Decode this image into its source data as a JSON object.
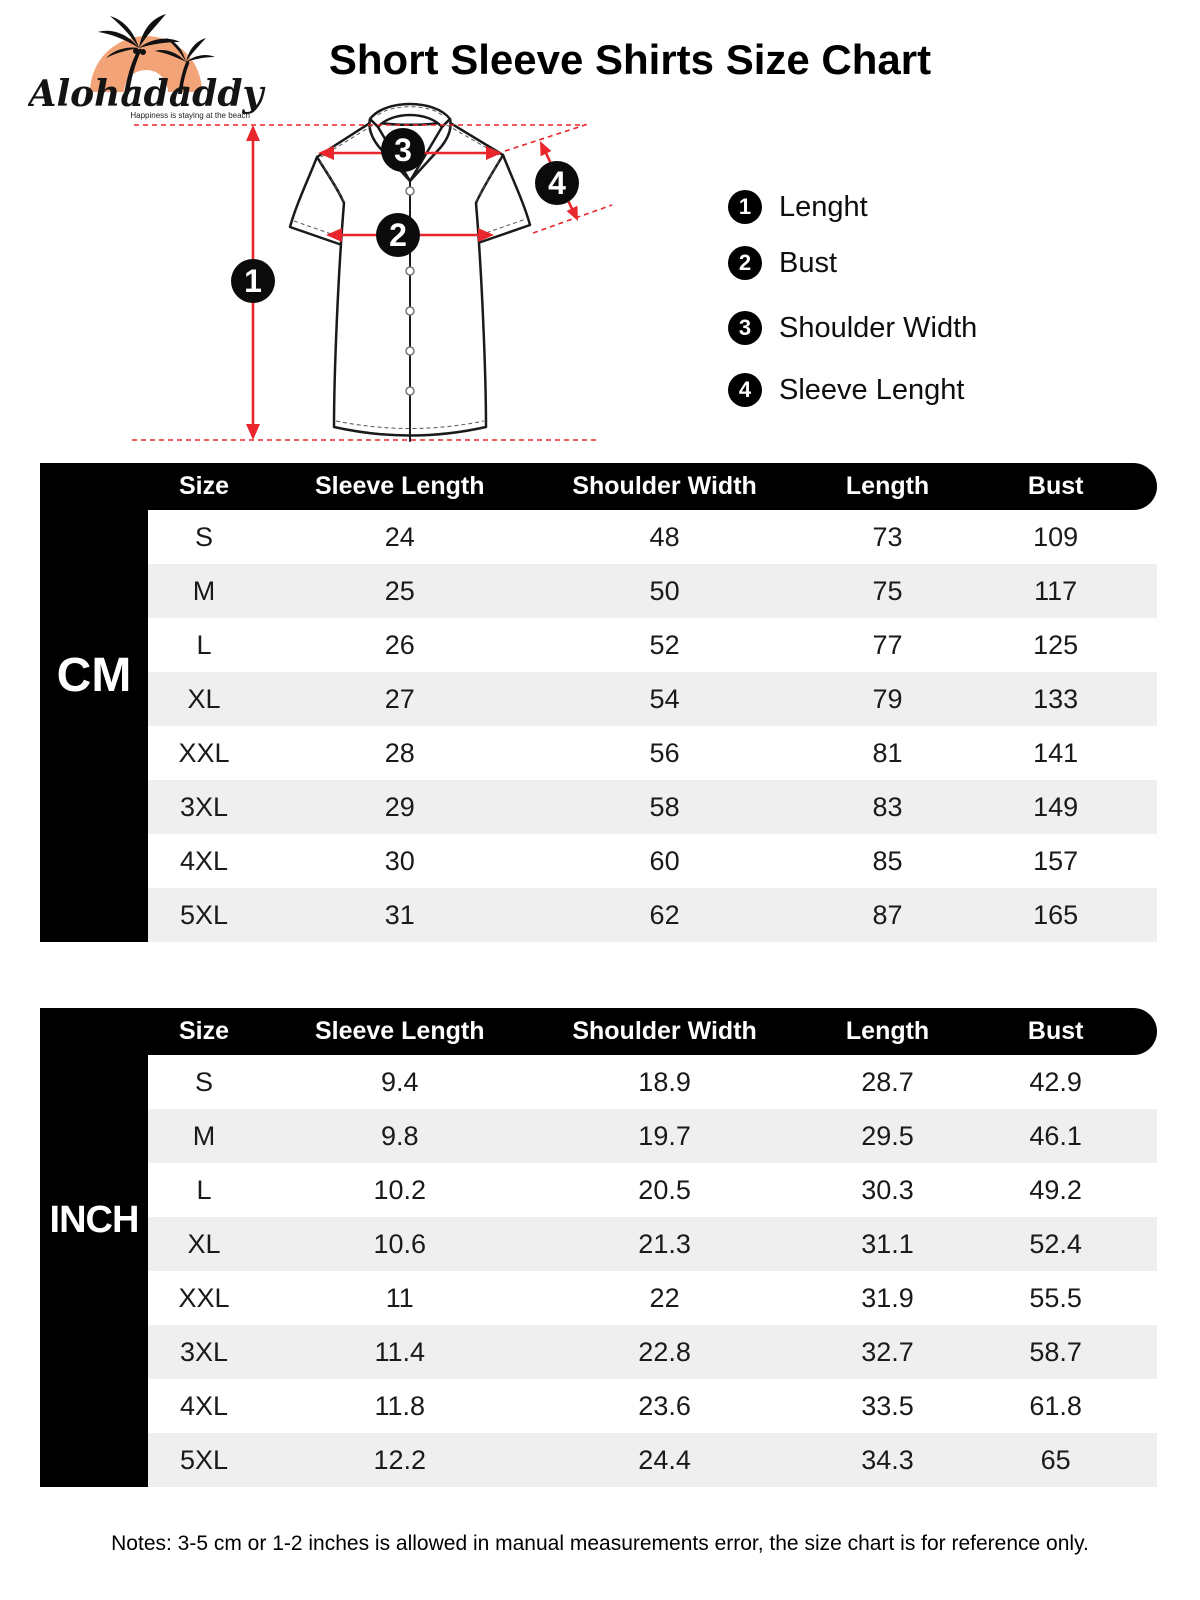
{
  "brand": {
    "name": "Alohadaddy",
    "tagline": "Happiness is staying at the beach"
  },
  "title": "Short Sleeve Shirts Size Chart",
  "legend": [
    {
      "num": "1",
      "label": "Lenght"
    },
    {
      "num": "2",
      "label": "Bust"
    },
    {
      "num": "3",
      "label": "Shoulder Width"
    },
    {
      "num": "4",
      "label": "Sleeve Lenght"
    }
  ],
  "diagram": {
    "badge_1": "1",
    "badge_2": "2",
    "badge_3": "3",
    "badge_4": "4"
  },
  "tables": [
    {
      "unit": "CM",
      "columns": [
        "Size",
        "Sleeve Length",
        "Shoulder Width",
        "Length",
        "Bust"
      ],
      "rows": [
        [
          "S",
          "24",
          "48",
          "73",
          "109"
        ],
        [
          "M",
          "25",
          "50",
          "75",
          "117"
        ],
        [
          "L",
          "26",
          "52",
          "77",
          "125"
        ],
        [
          "XL",
          "27",
          "54",
          "79",
          "133"
        ],
        [
          "XXL",
          "28",
          "56",
          "81",
          "141"
        ],
        [
          "3XL",
          "29",
          "58",
          "83",
          "149"
        ],
        [
          "4XL",
          "30",
          "60",
          "85",
          "157"
        ],
        [
          "5XL",
          "31",
          "62",
          "87",
          "165"
        ]
      ]
    },
    {
      "unit": "INCH",
      "columns": [
        "Size",
        "Sleeve Length",
        "Shoulder Width",
        "Length",
        "Bust"
      ],
      "rows": [
        [
          "S",
          "9.4",
          "18.9",
          "28.7",
          "42.9"
        ],
        [
          "M",
          "9.8",
          "19.7",
          "29.5",
          "46.1"
        ],
        [
          "L",
          "10.2",
          "20.5",
          "30.3",
          "49.2"
        ],
        [
          "XL",
          "10.6",
          "21.3",
          "31.1",
          "52.4"
        ],
        [
          "XXL",
          "11",
          "22",
          "31.9",
          "55.5"
        ],
        [
          "3XL",
          "11.4",
          "22.8",
          "32.7",
          "58.7"
        ],
        [
          "4XL",
          "11.8",
          "23.6",
          "33.5",
          "61.8"
        ],
        [
          "5XL",
          "12.2",
          "24.4",
          "34.3",
          "65"
        ]
      ]
    }
  ],
  "notes": "Notes: 3-5 cm or 1-2 inches is allowed in manual measurements error, the size chart is for reference only.",
  "colors": {
    "accent_red": "#E8262B",
    "logo_orange": "#F2A478",
    "row_alt": "#EFEFEF",
    "table_black": "#000000"
  }
}
